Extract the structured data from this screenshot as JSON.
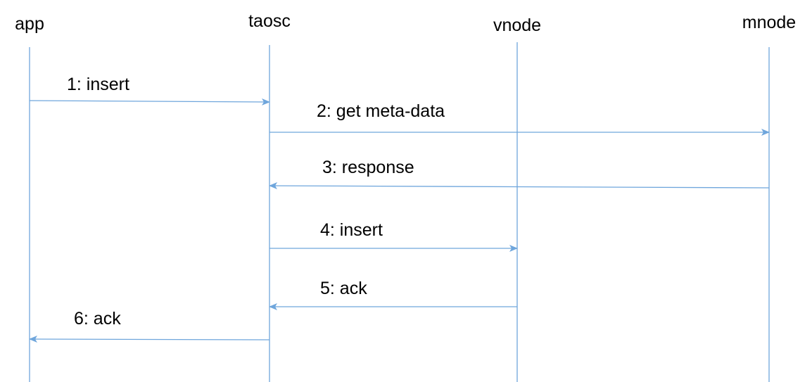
{
  "colors": {
    "line": "#6fa6dc",
    "text": "#000000"
  },
  "participants": [
    {
      "id": "app",
      "label": "app"
    },
    {
      "id": "taosc",
      "label": "taosc"
    },
    {
      "id": "vnode",
      "label": "vnode"
    },
    {
      "id": "mnode",
      "label": "mnode"
    }
  ],
  "messages": [
    {
      "from": "app",
      "to": "taosc",
      "label": "1: insert"
    },
    {
      "from": "taosc",
      "to": "mnode",
      "label": "2: get meta-data"
    },
    {
      "from": "mnode",
      "to": "taosc",
      "label": "3: response"
    },
    {
      "from": "taosc",
      "to": "vnode",
      "label": "4: insert"
    },
    {
      "from": "vnode",
      "to": "taosc",
      "label": "5: ack"
    },
    {
      "from": "taosc",
      "to": "app",
      "label": "6: ack"
    }
  ]
}
